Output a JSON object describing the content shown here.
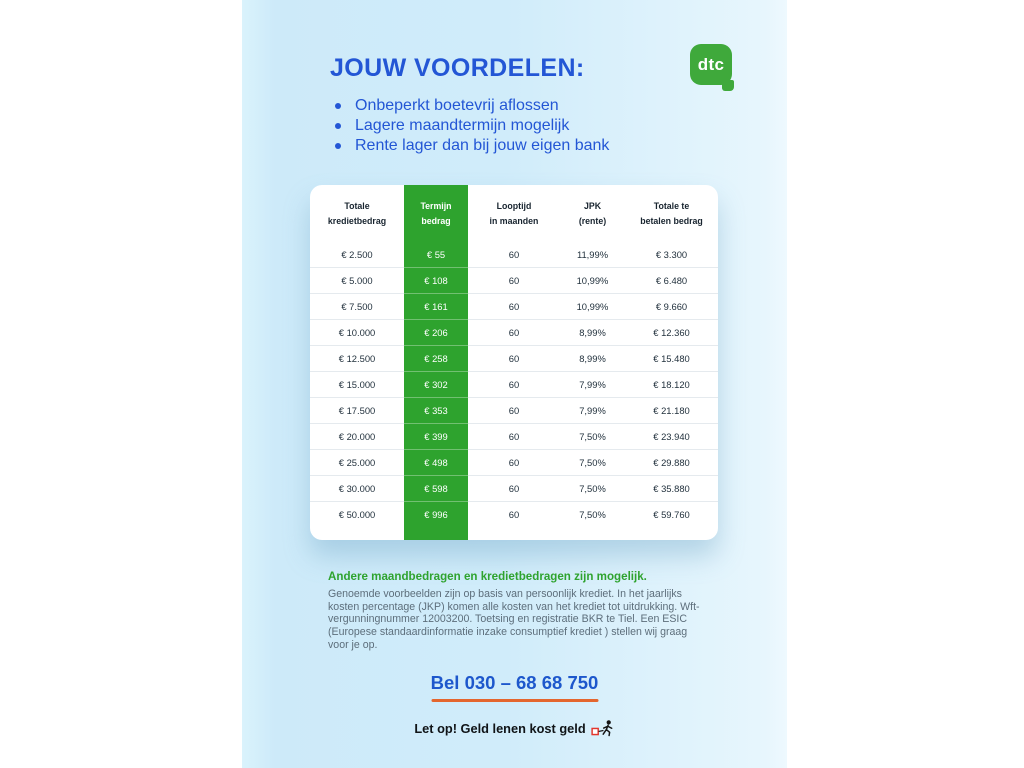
{
  "page": {
    "title": "JOUW VOORDELEN:",
    "bullets": [
      "Onbeperkt boetevrij aflossen",
      "Lagere maandtermijn mogelijk",
      "Rente lager dan bij jouw eigen bank"
    ]
  },
  "logo": {
    "text": "dtc"
  },
  "table": {
    "headers": [
      "Totale\nkredietbedrag",
      "Termijn\nbedrag",
      "Looptijd\nin maanden",
      "JPK\n(rente)",
      "Totale te\nbetalen bedrag"
    ],
    "highlight_column": 1,
    "rows": [
      [
        "€ 2.500",
        "€ 55",
        "60",
        "11,99%",
        "€ 3.300"
      ],
      [
        "€ 5.000",
        "€ 108",
        "60",
        "10,99%",
        "€ 6.480"
      ],
      [
        "€ 7.500",
        "€ 161",
        "60",
        "10,99%",
        "€ 9.660"
      ],
      [
        "€ 10.000",
        "€ 206",
        "60",
        "8,99%",
        "€ 12.360"
      ],
      [
        "€ 12.500",
        "€ 258",
        "60",
        "8,99%",
        "€ 15.480"
      ],
      [
        "€ 15.000",
        "€ 302",
        "60",
        "7,99%",
        "€ 18.120"
      ],
      [
        "€ 17.500",
        "€ 353",
        "60",
        "7,99%",
        "€ 21.180"
      ],
      [
        "€ 20.000",
        "€ 399",
        "60",
        "7,50%",
        "€ 23.940"
      ],
      [
        "€ 25.000",
        "€ 498",
        "60",
        "7,50%",
        "€ 29.880"
      ],
      [
        "€ 30.000",
        "€ 598",
        "60",
        "7,50%",
        "€ 35.880"
      ],
      [
        "€ 50.000",
        "€ 996",
        "60",
        "7,50%",
        "€ 59.760"
      ]
    ]
  },
  "footer": {
    "highlight_heading": "Andere maandbedragen en kredietbedragen zijn mogelijk.",
    "disclaimer": "Genoemde voorbeelden zijn op basis van persoonlijk krediet. In het jaarlijks kosten percentage (JKP) komen alle kosten van het krediet tot uitdrukking. Wft-vergunningnummer 12003200. Toetsing en registratie BKR te Tiel. Een ESIC (Europese standaardinformatie inzake consumptief krediet ) stellen wij graag voor je op.",
    "phone_cta": "Bel 030 – 68 68 750",
    "warning": "Let op! Geld lenen kost geld"
  },
  "colors": {
    "accent_blue": "#2356d5",
    "accent_green": "#2ea32e",
    "logo_green": "#3fa93b",
    "cta_underline_orange": "#e4662e",
    "panel_blue": "#cdeaf9"
  }
}
